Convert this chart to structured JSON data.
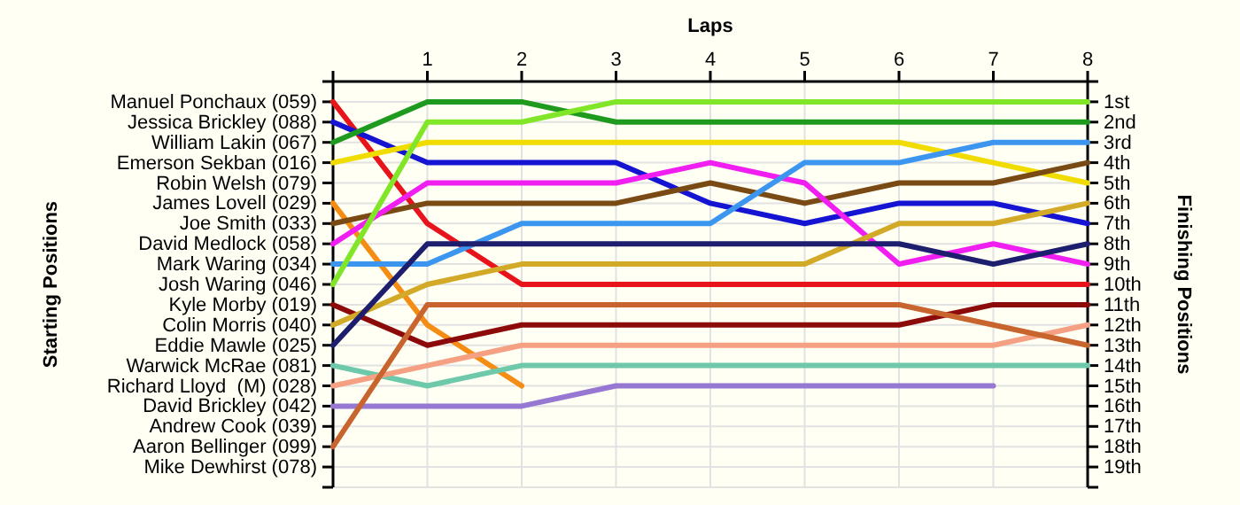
{
  "chart_data": {
    "type": "line",
    "xlabel": "Laps",
    "ylabel": "Finishing Positions",
    "x": [
      0,
      1,
      2,
      3,
      4,
      5,
      6,
      7,
      8
    ],
    "xlim": [
      0,
      8
    ],
    "xticks": [
      {
        "value": 0,
        "label": null
      },
      1,
      2,
      3,
      4,
      5,
      6,
      7,
      8
    ],
    "ylim": [
      20,
      0
    ],
    "yticks": [
      {
        "value": 0,
        "label": null
      },
      {
        "value": 1,
        "label": "1st"
      },
      {
        "value": 2,
        "label": "2nd"
      },
      {
        "value": 3,
        "label": "3rd"
      },
      {
        "value": 4,
        "label": "4th"
      },
      {
        "value": 5,
        "label": "5th"
      },
      {
        "value": 6,
        "label": "6th"
      },
      {
        "value": 7,
        "label": "7th"
      },
      {
        "value": 8,
        "label": "8th"
      },
      {
        "value": 9,
        "label": "9th"
      },
      {
        "value": 10,
        "label": "10th"
      },
      {
        "value": 11,
        "label": "11th"
      },
      {
        "value": 12,
        "label": "12th"
      },
      {
        "value": 13,
        "label": "13th"
      },
      {
        "value": 14,
        "label": "14th"
      },
      {
        "value": 15,
        "label": "15th"
      },
      {
        "value": 16,
        "label": "16th"
      },
      {
        "value": 17,
        "label": "17th"
      },
      {
        "value": 18,
        "label": "18th"
      },
      {
        "value": 19,
        "label": "19th"
      },
      {
        "value": 20,
        "label": null
      }
    ],
    "annotations": [
      "Starting Positions",
      "Manuel Ponchaux (059)",
      "Jessica Brickley (088)",
      "William Lakin (067)",
      "Emerson Sekban (016)",
      "Robin Welsh (079)",
      "James Lovell (029)",
      "Joe Smith (033)",
      "David Medlock (058)",
      "Mark Waring (034)",
      "Josh Waring (046)",
      "Kyle Morby (019)",
      "Colin Morris (040)",
      "Eddie Mawle (025)",
      "Warwick McRae (081)",
      "Richard Lloyd  (M) (028)",
      "David Brickley (042)",
      "Andrew Cook (039)",
      "Aaron Bellinger (099)",
      "Mike Dewhirst (078)"
    ],
    "grid": true,
    "marker": "none",
    "line_style": "solid",
    "series": [
      {
        "color": "#e8141c",
        "values": [
          1,
          7,
          10,
          10,
          10,
          10,
          10,
          10,
          10
        ]
      },
      {
        "color": "#1414d2",
        "values": [
          2,
          4,
          4,
          4,
          6,
          7,
          6,
          6,
          7
        ]
      },
      {
        "color": "#1e9a1e",
        "values": [
          3,
          1,
          1,
          2,
          2,
          2,
          2,
          2,
          2
        ]
      },
      {
        "color": "#f0dc00",
        "values": [
          4,
          3,
          3,
          3,
          3,
          3,
          3,
          4,
          5
        ]
      },
      {
        "color": "#f58c14",
        "values": [
          6,
          12,
          15,
          null,
          null,
          null,
          null,
          null,
          null
        ]
      },
      {
        "color": "#7a4a14",
        "values": [
          7,
          6,
          6,
          6,
          5,
          6,
          5,
          5,
          4
        ]
      },
      {
        "color": "#f01ef0",
        "values": [
          8,
          5,
          5,
          5,
          4,
          5,
          9,
          8,
          9
        ]
      },
      {
        "color": "#3c96f0",
        "values": [
          9,
          9,
          7,
          7,
          7,
          4,
          4,
          3,
          3
        ]
      },
      {
        "color": "#82e628",
        "values": [
          10,
          2,
          2,
          1,
          1,
          1,
          1,
          1,
          1
        ]
      },
      {
        "color": "#8c0a0a",
        "values": [
          11,
          13,
          12,
          12,
          12,
          12,
          12,
          11,
          11
        ]
      },
      {
        "color": "#d2aa28",
        "values": [
          12,
          10,
          9,
          9,
          9,
          9,
          7,
          7,
          6
        ]
      },
      {
        "color": "#1e1e6e",
        "values": [
          13,
          8,
          8,
          8,
          8,
          8,
          8,
          9,
          8
        ]
      },
      {
        "color": "#6ec8aa",
        "values": [
          14,
          15,
          14,
          14,
          14,
          14,
          14,
          14,
          14
        ]
      },
      {
        "color": "#f5a082",
        "values": [
          15,
          14,
          13,
          13,
          13,
          13,
          13,
          13,
          12
        ]
      },
      {
        "color": "#9678d2",
        "values": [
          16,
          16,
          16,
          15,
          15,
          15,
          15,
          15,
          null
        ]
      },
      {
        "color": "#c8642d",
        "values": [
          18,
          11,
          11,
          11,
          11,
          11,
          11,
          12,
          13
        ]
      }
    ]
  }
}
